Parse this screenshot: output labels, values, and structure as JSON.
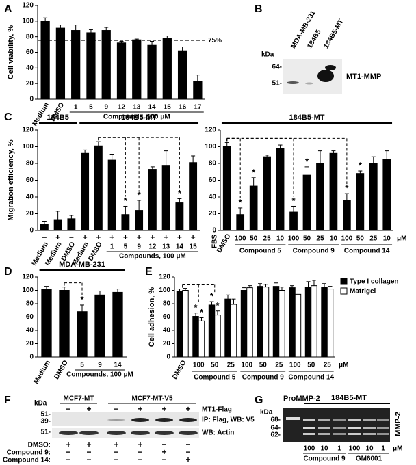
{
  "panels": [
    "A",
    "B",
    "C",
    "D",
    "E",
    "F",
    "G"
  ],
  "chart_data": [
    {
      "type": "bar",
      "y_label": "Cell viability, %",
      "x_label": "Compounds, 100 μM",
      "categories": [
        "Medium",
        "DMSO",
        "1",
        "5",
        "9",
        "12",
        "13",
        "14",
        "15",
        "16",
        "17"
      ],
      "values": [
        100,
        91,
        88,
        85,
        88,
        72,
        76,
        69,
        78,
        62,
        23
      ],
      "errors": [
        4,
        4,
        7,
        4,
        4,
        2,
        1,
        5,
        3,
        5,
        8
      ],
      "color": "#000000",
      "ylim": [
        0,
        120
      ],
      "yticks": [
        0,
        20,
        40,
        60,
        80,
        100,
        120
      ],
      "reference_line": {
        "value": 75,
        "label": "75%"
      }
    },
    {
      "type": "bar",
      "header_groups": [
        "184B5",
        "184B5-MT"
      ],
      "y_label": "Migration efficiency, %",
      "x_label": "Compounds, 100 μM",
      "categories": [
        "Medium",
        "Medium",
        "DMSO",
        "Medium",
        "DMSO",
        "1",
        "5",
        "9",
        "12",
        "13",
        "14",
        "15"
      ],
      "fbs": [
        "−",
        "+",
        "−",
        "+",
        "+",
        "+",
        "+",
        "+",
        "+",
        "+",
        "+",
        "+"
      ],
      "values": [
        7,
        13,
        14,
        92,
        101,
        84,
        19,
        24,
        73,
        77,
        33,
        81
      ],
      "errors": [
        4,
        10,
        4,
        4,
        5,
        7,
        10,
        12,
        3,
        18,
        5,
        8
      ],
      "significance": [
        null,
        null,
        null,
        null,
        null,
        null,
        "*",
        "*",
        null,
        null,
        "*",
        null
      ],
      "color": "#000000",
      "ylim": [
        0,
        120
      ],
      "yticks": [
        0,
        20,
        40,
        60,
        80,
        100,
        120
      ]
    },
    {
      "type": "bar",
      "header": "184B5-MT",
      "fbs_label": "FBS",
      "unit": "μM",
      "categories": [
        "DMSO",
        "100",
        "50",
        "25",
        "10",
        "100",
        "50",
        "25",
        "10",
        "100",
        "50",
        "25",
        "10"
      ],
      "groups": [
        "Compound 5",
        "Compound 9",
        "Compound 14"
      ],
      "values": [
        100,
        19,
        53,
        88,
        98,
        22,
        66,
        80,
        92,
        36,
        68,
        80,
        85
      ],
      "errors": [
        5,
        8,
        10,
        2,
        4,
        7,
        10,
        15,
        3,
        8,
        3,
        8,
        10
      ],
      "significance": [
        null,
        "*",
        "*",
        null,
        null,
        "*",
        "*",
        null,
        null,
        "*",
        "*",
        null,
        null
      ],
      "color": "#000000",
      "ylim": [
        0,
        120
      ],
      "yticks": [
        0,
        20,
        40,
        60,
        80,
        100,
        120
      ]
    },
    {
      "type": "bar",
      "title": "MDA-MB-231",
      "x_label": "Compounds, 100 μM",
      "categories": [
        "Medium",
        "DMSO",
        "5",
        "9",
        "14"
      ],
      "values": [
        102,
        100,
        68,
        93,
        97
      ],
      "errors": [
        4,
        5,
        10,
        6,
        5
      ],
      "significance": [
        null,
        null,
        "*",
        null,
        null
      ],
      "color": "#000000",
      "ylim": [
        0,
        120
      ],
      "yticks": [
        0,
        20,
        40,
        60,
        80,
        100,
        120
      ]
    },
    {
      "type": "bar",
      "y_label": "Cell adhesion, %",
      "unit": "μM",
      "categories": [
        "DMSO",
        "100",
        "50",
        "25",
        "100",
        "50",
        "25",
        "100",
        "50",
        "25"
      ],
      "groups": [
        "Compound 5",
        "Compound 9",
        "Compound 14"
      ],
      "series": [
        {
          "name": "Type I collagen",
          "color": "#000000",
          "values": [
            99,
            61,
            78,
            87,
            100,
            106,
            106,
            104,
            105,
            105
          ],
          "errors": [
            3,
            5,
            5,
            6,
            4,
            4,
            5,
            3,
            8,
            5
          ],
          "significance": [
            null,
            "*",
            "*",
            null,
            null,
            null,
            null,
            null,
            null,
            null
          ]
        },
        {
          "name": "Matrigel",
          "color": "#ffffff",
          "values": [
            100,
            54,
            63,
            79,
            104,
            105,
            100,
            94,
            107,
            102
          ],
          "errors": [
            3,
            5,
            6,
            8,
            3,
            4,
            5,
            5,
            8,
            4
          ],
          "significance": [
            null,
            "*",
            "*",
            null,
            null,
            null,
            null,
            null,
            null,
            null
          ]
        }
      ],
      "ylim": [
        0,
        120
      ],
      "yticks": [
        0,
        20,
        40,
        60,
        80,
        100,
        120
      ]
    }
  ],
  "blots": {
    "b": {
      "kda": "kDa",
      "markers": [
        "64-",
        "51-"
      ],
      "lanes": [
        "MDA-MB-231",
        "184B5",
        "184B5-MT"
      ],
      "protein": "MT1-MMP"
    },
    "f": {
      "kda": "kDa",
      "groups": [
        "MCF7-MT",
        "MCF7-MT-V5"
      ],
      "flag_label": "MT1-Flag",
      "flag": [
        "−",
        "+",
        "−",
        "+",
        "+",
        "+"
      ],
      "markers": [
        "51-",
        "39-",
        "51-"
      ],
      "ip_label": "IP: Flag, WB: V5",
      "wb_label": "WB: Actin",
      "treatments": [
        {
          "label": "DMSO:",
          "marks": [
            "+",
            "+",
            "+",
            "+",
            "−",
            "−"
          ]
        },
        {
          "label": "Compound 9:",
          "marks": [
            "−",
            "−",
            "−",
            "−",
            "+",
            "−"
          ]
        },
        {
          "label": "Compound 14:",
          "marks": [
            "−",
            "−",
            "−",
            "−",
            "−",
            "+"
          ]
        }
      ]
    },
    "g": {
      "kda": "kDa",
      "markers": [
        "68-",
        "64-",
        "62-"
      ],
      "promm": "ProMMP-2",
      "cell": "184B5-MT",
      "protein": "MMP-2",
      "doses": [
        "100",
        "10",
        "1",
        "100",
        "10",
        "1"
      ],
      "unit": "μM",
      "compounds": [
        "Compound 9",
        "GM6001"
      ]
    }
  }
}
